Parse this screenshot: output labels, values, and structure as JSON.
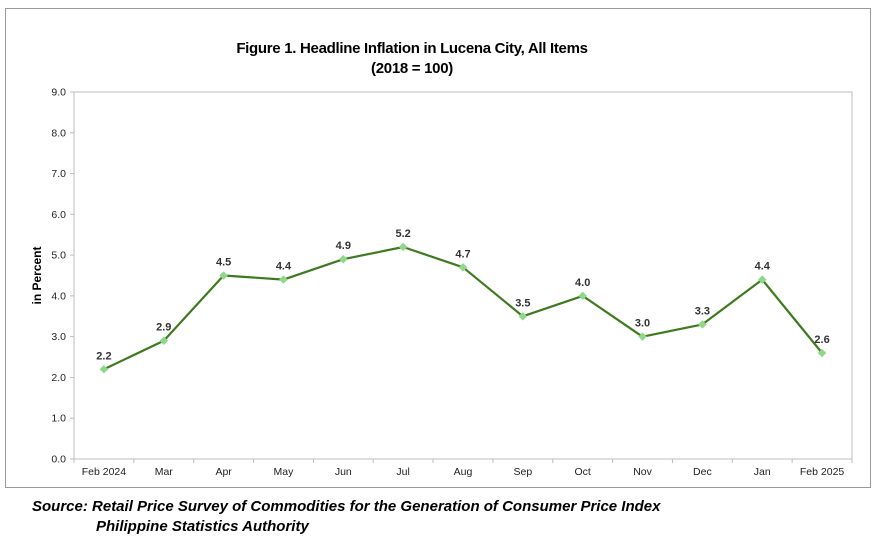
{
  "chart_data": {
    "type": "line",
    "title": "Figure 1. Headline Inflation in Lucena City, All Items",
    "subtitle": "(2018 = 100)",
    "xlabel": "",
    "ylabel": "in Percent",
    "categories": [
      "Feb 2024",
      "Mar",
      "Apr",
      "May",
      "Jun",
      "Jul",
      "Aug",
      "Sep",
      "Oct",
      "Nov",
      "Dec",
      "Jan",
      "Feb 2025"
    ],
    "values": [
      2.2,
      2.9,
      4.5,
      4.4,
      4.9,
      5.2,
      4.7,
      3.5,
      4.0,
      3.0,
      3.3,
      4.4,
      2.6
    ],
    "data_labels": [
      "2.2",
      "2.9",
      "4.5",
      "4.4",
      "4.9",
      "5.2",
      "4.7",
      "3.5",
      "4.0",
      "3.0",
      "3.3",
      "4.4",
      "2.6"
    ],
    "ylim": [
      0,
      9
    ],
    "y_ticks": [
      "0.0",
      "1.0",
      "2.0",
      "3.0",
      "4.0",
      "5.0",
      "6.0",
      "7.0",
      "8.0",
      "9.0"
    ],
    "grid": false,
    "legend": "none",
    "line_color": "#3f7a1f",
    "marker_color": "#8fd88a"
  },
  "source": {
    "line1": "Source: Retail Price Survey of Commodities for the Generation of Consumer Price Index",
    "line2": "Philippine Statistics Authority"
  }
}
